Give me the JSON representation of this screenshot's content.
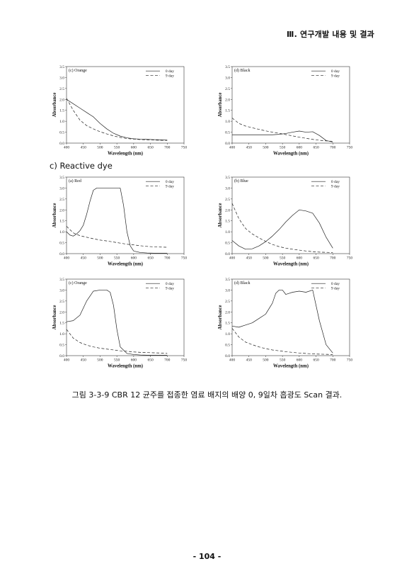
{
  "header": {
    "title": "Ⅲ. 연구개발 내용 및 결과"
  },
  "section": {
    "label": "c) Reactive dye"
  },
  "caption": {
    "text": "그림 3-3-9 CBR 12 균주를 접종한 염료 배지의 배양 0, 9일차 흡광도 Scan 결과."
  },
  "page_number": {
    "text": "- 104 -"
  },
  "chart_data": [
    {
      "type": "line",
      "panel": "(c) Orange",
      "xlabel": "Wavelength (nm)",
      "ylabel": "Absorbance",
      "xlim": [
        400,
        750
      ],
      "ylim": [
        0,
        3.5
      ],
      "xticks": [
        "400",
        "450",
        "500",
        "550",
        "600",
        "650",
        "700",
        "750"
      ],
      "yticks": [
        "0.0",
        "0.5",
        "1.0",
        "1.5",
        "2.0",
        "2.5",
        "3.0",
        "3.5"
      ],
      "legend_position": "top-right",
      "series": [
        {
          "name": "0 day",
          "style": "solid",
          "x": [
            400,
            420,
            440,
            460,
            480,
            500,
            520,
            540,
            560,
            580,
            600,
            620,
            640,
            660,
            680,
            700
          ],
          "y": [
            2.0,
            1.8,
            1.6,
            1.4,
            1.2,
            0.9,
            0.65,
            0.45,
            0.32,
            0.24,
            0.2,
            0.18,
            0.17,
            0.16,
            0.15,
            0.14
          ]
        },
        {
          "name": "9 day",
          "style": "dashed",
          "x": [
            400,
            420,
            440,
            460,
            480,
            500,
            520,
            540,
            560,
            580,
            600,
            620,
            640,
            660,
            680,
            700
          ],
          "y": [
            2.05,
            1.5,
            1.05,
            0.8,
            0.65,
            0.52,
            0.42,
            0.33,
            0.26,
            0.21,
            0.18,
            0.16,
            0.15,
            0.14,
            0.13,
            0.12
          ]
        }
      ]
    },
    {
      "type": "line",
      "panel": "(d) Black",
      "xlabel": "Wavelength (nm)",
      "ylabel": "Absorbance",
      "xlim": [
        400,
        750
      ],
      "ylim": [
        0,
        3.5
      ],
      "xticks": [
        "400",
        "450",
        "500",
        "550",
        "600",
        "650",
        "700",
        "750"
      ],
      "yticks": [
        "0.0",
        "0.5",
        "1.0",
        "1.5",
        "2.0",
        "2.5",
        "3.0",
        "3.5"
      ],
      "legend_position": "top-right",
      "series": [
        {
          "name": "0 day",
          "style": "solid",
          "x": [
            400,
            420,
            440,
            460,
            480,
            500,
            520,
            540,
            560,
            580,
            600,
            620,
            640,
            660,
            680,
            700
          ],
          "y": [
            0.38,
            0.38,
            0.38,
            0.38,
            0.38,
            0.38,
            0.38,
            0.4,
            0.44,
            0.5,
            0.55,
            0.5,
            0.52,
            0.35,
            0.12,
            0.05
          ]
        },
        {
          "name": "9 day",
          "style": "dashed",
          "x": [
            400,
            420,
            440,
            460,
            480,
            500,
            520,
            540,
            560,
            580,
            600,
            620,
            640,
            660,
            680,
            700
          ],
          "y": [
            1.15,
            0.9,
            0.78,
            0.7,
            0.63,
            0.56,
            0.5,
            0.45,
            0.39,
            0.33,
            0.27,
            0.22,
            0.17,
            0.13,
            0.1,
            0.08
          ]
        }
      ]
    },
    {
      "type": "line",
      "panel": "(a) Red",
      "xlabel": "Wavelength (nm)",
      "ylabel": "Absorbance",
      "xlim": [
        400,
        750
      ],
      "ylim": [
        0,
        3.5
      ],
      "xticks": [
        "400",
        "450",
        "500",
        "550",
        "600",
        "650",
        "700",
        "750"
      ],
      "yticks": [
        "0.0",
        "0.5",
        "1.0",
        "1.5",
        "2.0",
        "2.5",
        "3.0",
        "3.5"
      ],
      "legend_position": "top-right",
      "series": [
        {
          "name": "0 day",
          "style": "solid",
          "x": [
            400,
            410,
            420,
            430,
            440,
            450,
            460,
            470,
            480,
            490,
            500,
            520,
            540,
            560,
            570,
            580,
            590,
            600,
            620,
            640,
            660,
            680,
            700
          ],
          "y": [
            1.0,
            0.85,
            0.8,
            0.9,
            1.05,
            1.3,
            1.8,
            2.4,
            2.9,
            3.0,
            3.0,
            3.0,
            3.0,
            3.0,
            2.2,
            1.0,
            0.35,
            0.12,
            0.05,
            0.03,
            0.02,
            0.02,
            0.02
          ]
        },
        {
          "name": "9 day",
          "style": "dashed",
          "x": [
            400,
            420,
            440,
            460,
            480,
            500,
            520,
            540,
            560,
            580,
            600,
            620,
            640,
            660,
            680,
            700
          ],
          "y": [
            1.25,
            0.95,
            0.82,
            0.75,
            0.68,
            0.62,
            0.58,
            0.53,
            0.48,
            0.43,
            0.4,
            0.36,
            0.33,
            0.31,
            0.3,
            0.29
          ]
        }
      ]
    },
    {
      "type": "line",
      "panel": "(b) Blue",
      "xlabel": "Wavelength (nm)",
      "ylabel": "Absorbance",
      "xlim": [
        400,
        750
      ],
      "ylim": [
        0,
        3.5
      ],
      "xticks": [
        "400",
        "450",
        "500",
        "550",
        "600",
        "650",
        "700",
        "750"
      ],
      "yticks": [
        "0.0",
        "0.5",
        "1.0",
        "1.5",
        "2.0",
        "2.5",
        "3.0",
        "3.5"
      ],
      "legend_position": "top-right",
      "series": [
        {
          "name": "0 day",
          "style": "solid",
          "x": [
            400,
            420,
            440,
            460,
            480,
            500,
            520,
            540,
            560,
            580,
            600,
            620,
            640,
            660,
            680,
            700
          ],
          "y": [
            0.6,
            0.35,
            0.2,
            0.22,
            0.35,
            0.55,
            0.8,
            1.1,
            1.45,
            1.75,
            2.0,
            1.95,
            1.85,
            1.4,
            0.75,
            0.25
          ]
        },
        {
          "name": "9 day",
          "style": "dashed",
          "x": [
            400,
            420,
            440,
            460,
            480,
            500,
            520,
            540,
            560,
            580,
            600,
            620,
            640,
            660,
            680,
            700
          ],
          "y": [
            2.3,
            1.6,
            1.15,
            0.9,
            0.72,
            0.56,
            0.42,
            0.32,
            0.25,
            0.2,
            0.16,
            0.12,
            0.09,
            0.07,
            0.06,
            0.05
          ]
        }
      ]
    },
    {
      "type": "line",
      "panel": "(c) Orange",
      "xlabel": "Wavelength (nm)",
      "ylabel": "Absorbance",
      "xlim": [
        400,
        750
      ],
      "ylim": [
        0,
        3.5
      ],
      "xticks": [
        "400",
        "450",
        "500",
        "550",
        "600",
        "650",
        "700",
        "750"
      ],
      "yticks": [
        "0.0",
        "0.5",
        "1.0",
        "1.5",
        "2.0",
        "2.5",
        "3.0",
        "3.5"
      ],
      "legend_position": "top-right",
      "series": [
        {
          "name": "0 day",
          "style": "solid",
          "x": [
            400,
            420,
            440,
            460,
            480,
            500,
            520,
            530,
            540,
            550,
            560,
            580,
            600,
            620,
            640,
            660,
            680,
            700
          ],
          "y": [
            1.55,
            1.6,
            1.85,
            2.5,
            2.95,
            3.0,
            3.0,
            2.9,
            2.3,
            1.2,
            0.4,
            0.1,
            0.05,
            0.03,
            0.02,
            0.02,
            0.02,
            0.02
          ]
        },
        {
          "name": "9 day",
          "style": "dashed",
          "x": [
            400,
            420,
            440,
            460,
            480,
            500,
            520,
            540,
            560,
            580,
            600,
            620,
            640,
            660,
            680,
            700
          ],
          "y": [
            1.2,
            0.8,
            0.6,
            0.48,
            0.4,
            0.34,
            0.3,
            0.26,
            0.22,
            0.2,
            0.17,
            0.15,
            0.14,
            0.13,
            0.12,
            0.1
          ]
        }
      ]
    },
    {
      "type": "line",
      "panel": "(d) Black",
      "xlabel": "Wavelength (nm)",
      "ylabel": "Absorbance",
      "xlim": [
        400,
        750
      ],
      "ylim": [
        0,
        3.5
      ],
      "xticks": [
        "400",
        "450",
        "500",
        "550",
        "600",
        "650",
        "700",
        "750"
      ],
      "yticks": [
        "0.0",
        "0.5",
        "1.0",
        "1.5",
        "2.0",
        "2.5",
        "3.0",
        "3.5"
      ],
      "legend_position": "top-right",
      "series": [
        {
          "name": "0 day",
          "style": "solid",
          "x": [
            400,
            420,
            440,
            460,
            480,
            500,
            520,
            530,
            540,
            550,
            560,
            570,
            580,
            600,
            620,
            640,
            660,
            680,
            700
          ],
          "y": [
            1.35,
            1.3,
            1.4,
            1.5,
            1.7,
            1.9,
            2.4,
            2.85,
            3.0,
            3.0,
            2.8,
            2.85,
            2.9,
            2.95,
            2.9,
            3.0,
            1.6,
            0.5,
            0.12
          ]
        },
        {
          "name": "9 day",
          "style": "dashed",
          "x": [
            400,
            420,
            440,
            460,
            480,
            500,
            520,
            540,
            560,
            580,
            600,
            620,
            640,
            660,
            680,
            700
          ],
          "y": [
            1.25,
            0.85,
            0.62,
            0.5,
            0.4,
            0.32,
            0.26,
            0.22,
            0.18,
            0.15,
            0.12,
            0.1,
            0.08,
            0.07,
            0.06,
            0.05
          ]
        }
      ]
    }
  ]
}
